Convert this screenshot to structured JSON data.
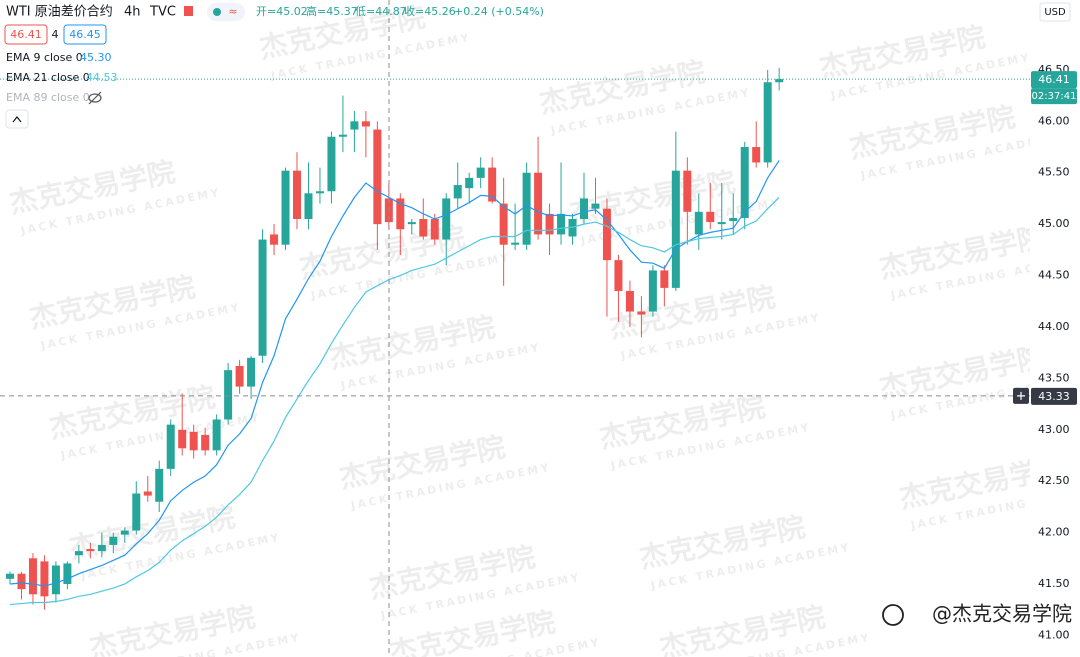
{
  "header": {
    "symbol": "WTI 原油差价合约",
    "interval": "4h",
    "source": "TVC",
    "open": "开=45.02",
    "high": "高=45.37",
    "low": "低=44.87",
    "close": "收=45.26",
    "change": "+0.24 (+0.54%)",
    "bid": "46.41",
    "spread": "4",
    "ask": "46.45"
  },
  "indicators": [
    {
      "name": "EMA 9 close 0",
      "value": "45.30"
    },
    {
      "name": "EMA 21 close 0",
      "value": "44.53"
    },
    {
      "name": "EMA 89 close 0"
    }
  ],
  "watermark": {
    "text": "杰克交易学院",
    "subtext": "JACK TRADING ACADEMY",
    "signature": "@杰克交易学院"
  },
  "axis": {
    "currency": "USD",
    "countdown": "02:37:41"
  },
  "chart_data": {
    "type": "candlestick",
    "up_color": "#26a69a",
    "down_color": "#ef5350",
    "open": [
      41.55,
      41.6,
      41.75,
      41.72,
      41.4,
      41.5,
      41.78,
      41.84,
      41.82,
      41.88,
      41.98,
      42.02,
      42.4,
      42.3,
      42.62,
      43.0,
      42.98,
      42.95,
      42.8,
      43.1,
      43.62,
      43.42,
      43.72,
      44.9,
      44.8,
      45.52,
      45.05,
      45.3,
      45.32,
      45.85,
      45.92,
      46.0,
      45.92,
      45.25,
      45.25,
      45.0,
      45.05,
      45.05,
      44.85,
      45.25,
      45.35,
      45.45,
      45.55,
      45.2,
      44.8,
      44.8,
      45.5,
      45.1,
      44.9,
      44.88,
      45.05,
      45.15,
      45.15,
      44.65,
      44.35,
      44.15,
      44.15,
      44.55,
      44.38,
      45.52,
      44.9,
      45.12,
      45.0,
      45.03,
      45.06,
      45.75,
      45.6,
      46.38
    ],
    "high": [
      41.62,
      41.62,
      41.8,
      41.78,
      41.72,
      41.72,
      41.88,
      41.9,
      42.0,
      42.0,
      42.05,
      42.5,
      42.55,
      42.7,
      43.1,
      43.35,
      43.05,
      43.02,
      43.15,
      43.65,
      43.68,
      43.72,
      44.95,
      45.0,
      45.55,
      45.7,
      45.6,
      45.55,
      45.9,
      46.25,
      46.1,
      46.1,
      46.0,
      45.4,
      45.3,
      45.05,
      45.25,
      45.1,
      45.3,
      45.6,
      45.5,
      45.65,
      45.65,
      45.45,
      45.2,
      45.6,
      45.85,
      45.2,
      45.6,
      45.1,
      45.5,
      45.45,
      45.25,
      44.7,
      44.45,
      44.3,
      44.6,
      44.6,
      45.9,
      45.65,
      45.3,
      45.4,
      45.4,
      45.3,
      45.8,
      46.0,
      46.5,
      46.52
    ],
    "low": [
      41.5,
      41.35,
      41.3,
      41.25,
      41.32,
      41.45,
      41.7,
      41.75,
      41.76,
      41.8,
      41.9,
      41.98,
      42.3,
      42.2,
      42.55,
      42.75,
      42.72,
      42.75,
      42.75,
      43.05,
      43.35,
      43.3,
      43.65,
      44.7,
      44.75,
      44.95,
      44.95,
      45.2,
      45.2,
      45.7,
      45.7,
      45.65,
      44.75,
      44.95,
      44.7,
      44.9,
      44.85,
      44.8,
      44.6,
      45.15,
      45.2,
      45.35,
      45.2,
      44.4,
      44.75,
      44.75,
      44.85,
      44.7,
      44.8,
      44.8,
      45.0,
      45.1,
      44.1,
      44.05,
      44.0,
      43.9,
      44.1,
      44.2,
      44.35,
      44.8,
      44.75,
      44.95,
      44.85,
      44.9,
      44.95,
      45.55,
      45.55,
      46.3
    ],
    "close": [
      41.6,
      41.45,
      41.4,
      41.38,
      41.68,
      41.7,
      41.82,
      41.82,
      41.88,
      41.96,
      42.02,
      42.38,
      42.36,
      42.62,
      43.05,
      42.82,
      42.8,
      42.8,
      43.1,
      43.58,
      43.42,
      43.7,
      44.85,
      44.8,
      45.52,
      45.05,
      45.3,
      45.32,
      45.85,
      45.87,
      46.0,
      45.95,
      45.0,
      45.02,
      44.95,
      45.02,
      44.88,
      44.85,
      45.25,
      45.38,
      45.45,
      45.55,
      45.22,
      44.8,
      44.82,
      45.5,
      44.9,
      44.9,
      45.1,
      45.05,
      45.25,
      45.2,
      44.65,
      44.35,
      44.15,
      44.12,
      44.55,
      44.38,
      45.52,
      45.12,
      45.12,
      45.02,
      45.02,
      45.06,
      45.75,
      45.6,
      46.38,
      46.41
    ],
    "series": [
      {
        "name": "EMA 9 close 0",
        "color": "#2196f3",
        "values": [
          41.5,
          41.51,
          41.5,
          41.48,
          41.51,
          41.55,
          41.6,
          41.64,
          41.68,
          41.73,
          41.78,
          41.89,
          41.99,
          42.12,
          42.31,
          42.41,
          42.49,
          42.55,
          42.66,
          42.85,
          42.96,
          43.11,
          43.46,
          43.72,
          44.08,
          44.27,
          44.47,
          44.64,
          44.88,
          45.08,
          45.26,
          45.4,
          45.32,
          45.26,
          45.2,
          45.16,
          45.1,
          45.05,
          45.09,
          45.15,
          45.21,
          45.28,
          45.27,
          45.17,
          45.1,
          45.18,
          45.12,
          45.08,
          45.09,
          45.08,
          45.12,
          45.14,
          45.04,
          44.9,
          44.75,
          44.63,
          44.62,
          44.57,
          44.76,
          44.83,
          44.89,
          44.92,
          44.94,
          44.96,
          45.12,
          45.22,
          45.45,
          45.62
        ]
      },
      {
        "name": "EMA 21 close 0",
        "color": "#4dc8e0",
        "values": [
          41.3,
          41.31,
          41.32,
          41.32,
          41.33,
          41.35,
          41.38,
          41.4,
          41.43,
          41.46,
          41.5,
          41.57,
          41.63,
          41.71,
          41.83,
          41.92,
          41.99,
          42.06,
          42.15,
          42.27,
          42.37,
          42.49,
          42.7,
          42.89,
          43.12,
          43.3,
          43.48,
          43.64,
          43.84,
          44.02,
          44.19,
          44.34,
          44.4,
          44.46,
          44.5,
          44.55,
          44.58,
          44.61,
          44.67,
          44.73,
          44.79,
          44.85,
          44.88,
          44.88,
          44.88,
          44.94,
          44.94,
          44.94,
          44.96,
          44.97,
          45.0,
          45.02,
          44.98,
          44.92,
          44.85,
          44.79,
          44.77,
          44.73,
          44.8,
          44.83,
          44.86,
          44.87,
          44.88,
          44.9,
          44.98,
          45.03,
          45.15,
          45.26
        ]
      }
    ],
    "ylim": [
      40.79,
      47.18
    ],
    "yticks": [
      {
        "value": 41,
        "label": "41.00"
      },
      {
        "value": 41.5,
        "label": "41.50"
      },
      {
        "value": 42,
        "label": "42.00"
      },
      {
        "value": 42.5,
        "label": "42.50"
      },
      {
        "value": 43,
        "label": "43.00"
      },
      {
        "value": 43.5,
        "label": "43.50"
      },
      {
        "value": 44,
        "label": "44.00"
      },
      {
        "value": 44.5,
        "label": "44.50"
      },
      {
        "value": 45,
        "label": "45.00"
      },
      {
        "value": 45.5,
        "label": "45.50"
      },
      {
        "value": 46,
        "label": "46.00"
      },
      {
        "value": 46.5,
        "label": "46.50"
      }
    ],
    "grid": false,
    "last_price": {
      "value": 46.41,
      "label": "46.41"
    },
    "crosshair": {
      "value": 43.33,
      "label": "43.33"
    }
  }
}
